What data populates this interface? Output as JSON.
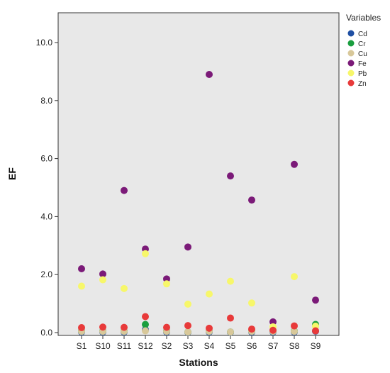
{
  "chart_data": {
    "type": "scatter",
    "title": "",
    "xlabel": "Stations",
    "ylabel": "EF",
    "categories": [
      "S1",
      "S10",
      "S11",
      "S12",
      "S2",
      "S3",
      "S4",
      "S5",
      "S6",
      "S7",
      "S8",
      "S9"
    ],
    "ylim": [
      0,
      11.5
    ],
    "yticks": [
      0.0,
      2.0,
      4.0,
      6.0,
      8.0,
      10.0
    ],
    "ytick_labels": [
      "0.0",
      "2.0",
      "4.0",
      "6.0",
      "8.0",
      "10.0"
    ],
    "grid": false,
    "plot_background": "#e8e8e8",
    "legend": {
      "title": "Variables",
      "position": "right"
    },
    "series": [
      {
        "name": "Cd",
        "color": "#1f4fa3",
        "values": [
          0.02,
          0.02,
          0.02,
          0.1,
          0.02,
          0.01,
          0.02,
          0.01,
          0.02,
          0.02,
          0.02,
          0.05
        ]
      },
      {
        "name": "Cr",
        "color": "#1a9e3f",
        "values": [
          0.05,
          0.05,
          0.05,
          0.28,
          0.05,
          0.02,
          0.05,
          0.02,
          0.05,
          0.05,
          0.05,
          0.28
        ]
      },
      {
        "name": "Cu",
        "color": "#d8c89a",
        "values": [
          0.04,
          0.04,
          0.04,
          0.06,
          0.04,
          0.02,
          0.04,
          0.02,
          0.04,
          0.04,
          0.04,
          0.22
        ]
      },
      {
        "name": "Fe",
        "color": "#7b1a78",
        "values": [
          2.2,
          2.02,
          4.9,
          2.88,
          1.85,
          2.95,
          8.9,
          5.4,
          4.57,
          0.37,
          5.8,
          1.12
        ]
      },
      {
        "name": "Pb",
        "color": "#f7f76a",
        "values": [
          1.6,
          1.82,
          1.52,
          2.72,
          1.68,
          0.98,
          1.33,
          1.77,
          1.02,
          0.2,
          1.93,
          0.22
        ]
      },
      {
        "name": "Zn",
        "color": "#e83a3a",
        "values": [
          0.17,
          0.19,
          0.18,
          0.55,
          0.18,
          0.24,
          0.15,
          0.5,
          0.12,
          0.08,
          0.23,
          0.06
        ]
      }
    ]
  }
}
